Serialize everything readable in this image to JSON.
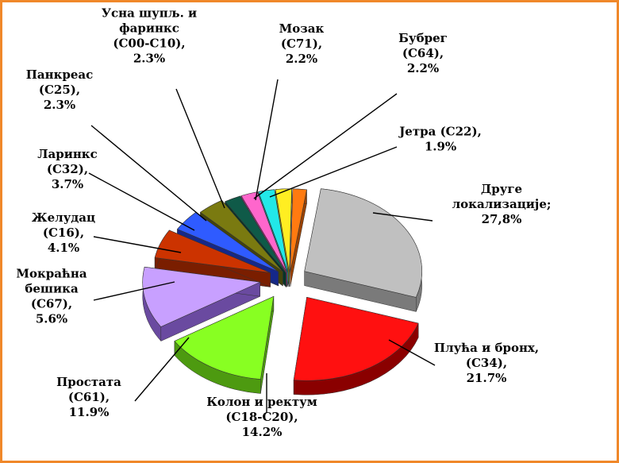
{
  "chart_data": {
    "type": "pie",
    "style": "3d-exploded",
    "slices": [
      {
        "label_lines": [
          "Друге",
          "локализације;",
          "27,8%"
        ],
        "value": 27.8,
        "color": "#c0c0c0",
        "side": "#7a7a7a"
      },
      {
        "label_lines": [
          "Плућа и бронх,",
          "(C34),",
          "21.7%"
        ],
        "value": 21.7,
        "color": "#ff1010",
        "side": "#8a0000"
      },
      {
        "label_lines": [
          "Колон и ректум",
          "(C18-C20),",
          "14.2%"
        ],
        "value": 14.2,
        "color": "#88ff22",
        "side": "#4d9a10"
      },
      {
        "label_lines": [
          "Простата",
          "(C61),",
          "11.9%"
        ],
        "value": 11.9,
        "color": "#c8a0ff",
        "side": "#6a4aa0"
      },
      {
        "label_lines": [
          "Мокраћна",
          "бешика",
          "(C67),",
          "5.6%"
        ],
        "value": 5.6,
        "color": "#cc3300",
        "side": "#7a1e00"
      },
      {
        "label_lines": [
          "Желудац",
          "(C16),",
          "4.1%"
        ],
        "value": 4.1,
        "color": "#2f5bff",
        "side": "#15288a"
      },
      {
        "label_lines": [
          "Ларинкс",
          "(C32),",
          "3.7%"
        ],
        "value": 3.7,
        "color": "#7a7a10",
        "side": "#44440a"
      },
      {
        "label_lines": [
          "Панкреас",
          "(C25),",
          "2.3%"
        ],
        "value": 2.3,
        "color": "#0f5a48",
        "side": "#073328"
      },
      {
        "label_lines": [
          "Усна шупљ. и",
          "фаринкс",
          "(C00-C10),",
          "2.3%"
        ],
        "value": 2.3,
        "color": "#ff66cc",
        "side": "#a02f80"
      },
      {
        "label_lines": [
          "Мозак",
          "(C71),",
          "2.2%"
        ],
        "value": 2.2,
        "color": "#22e8e8",
        "side": "#108888"
      },
      {
        "label_lines": [
          "Бубрег",
          "(C64),",
          "2.2%"
        ],
        "value": 2.2,
        "color": "#ffee22",
        "side": "#9a8a00"
      },
      {
        "label_lines": [
          "Јетра (C22),",
          "1.9%"
        ],
        "value": 1.9,
        "color": "#ff7a10",
        "side": "#9a4200"
      }
    ]
  }
}
